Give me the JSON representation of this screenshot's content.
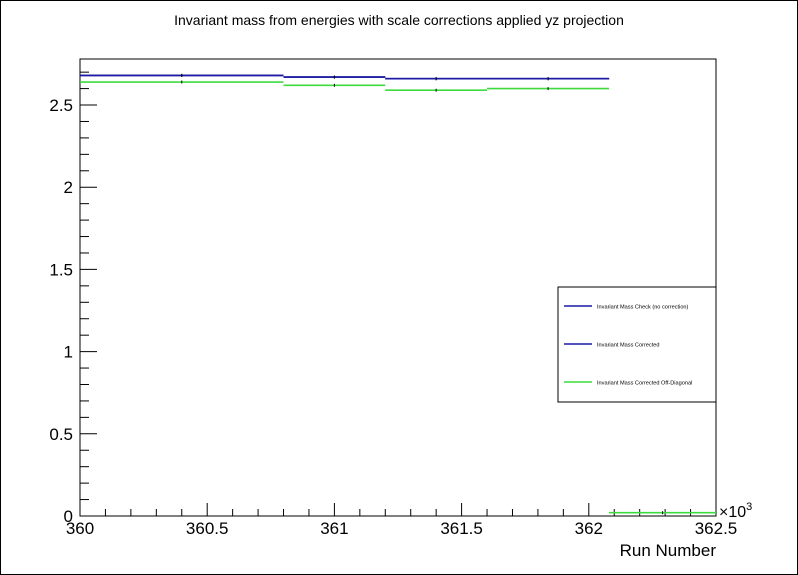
{
  "chart_data": {
    "type": "line",
    "title": "Invariant mass from energies with scale corrections applied yz projection",
    "xlabel": "Run Number",
    "ylabel": "",
    "x_multiplier_label": "×10",
    "x_multiplier_exp": "3",
    "xlim": [
      360.0,
      362.5
    ],
    "ylim": [
      0,
      2.78
    ],
    "x_ticks": [
      {
        "value": 360.0,
        "label": "360"
      },
      {
        "value": 360.5,
        "label": "360.5"
      },
      {
        "value": 361.0,
        "label": "361"
      },
      {
        "value": 361.5,
        "label": "361.5"
      },
      {
        "value": 362.0,
        "label": "362"
      },
      {
        "value": 362.5,
        "label": "362.5"
      }
    ],
    "y_ticks": [
      {
        "value": 0,
        "label": "0"
      },
      {
        "value": 0.5,
        "label": "0.5"
      },
      {
        "value": 1.0,
        "label": "1"
      },
      {
        "value": 1.5,
        "label": "1.5"
      },
      {
        "value": 2.0,
        "label": "2"
      },
      {
        "value": 2.5,
        "label": "2.5"
      }
    ],
    "legend_position": "right",
    "series": [
      {
        "name": "Invariant Mass Check (no correction)",
        "color": "#1a1aa6",
        "bins": [
          {
            "x0": 360.0,
            "x1": 360.8,
            "y": 2.68
          },
          {
            "x0": 360.8,
            "x1": 361.2,
            "y": 2.67
          },
          {
            "x0": 361.2,
            "x1": 361.6,
            "y": 2.66
          },
          {
            "x0": 361.6,
            "x1": 362.08,
            "y": 2.66
          }
        ]
      },
      {
        "name": "Invariant Mass Corrected",
        "color": "#1a1aa6",
        "bins": [
          {
            "x0": 360.0,
            "x1": 360.8,
            "y": 2.68
          },
          {
            "x0": 360.8,
            "x1": 361.2,
            "y": 2.67
          },
          {
            "x0": 361.2,
            "x1": 361.6,
            "y": 2.66
          },
          {
            "x0": 361.6,
            "x1": 362.08,
            "y": 2.66
          }
        ]
      },
      {
        "name": "Invariant Mass Corrected Off-Diagonal",
        "color": "#3ddc3d",
        "bins": [
          {
            "x0": 360.0,
            "x1": 360.8,
            "y": 2.64
          },
          {
            "x0": 360.8,
            "x1": 361.2,
            "y": 2.62
          },
          {
            "x0": 361.2,
            "x1": 361.6,
            "y": 2.59
          },
          {
            "x0": 361.6,
            "x1": 362.08,
            "y": 2.6
          },
          {
            "x0": 362.08,
            "x1": 362.5,
            "y": 0.02
          }
        ]
      }
    ]
  }
}
